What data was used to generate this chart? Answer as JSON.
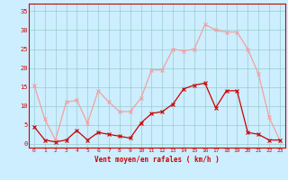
{
  "hours": [
    0,
    1,
    2,
    3,
    4,
    5,
    6,
    7,
    8,
    9,
    10,
    11,
    12,
    13,
    14,
    15,
    16,
    17,
    18,
    19,
    20,
    21,
    22,
    23
  ],
  "rafales": [
    15.5,
    6.5,
    1.0,
    11.0,
    11.5,
    5.5,
    14.0,
    11.0,
    8.5,
    8.5,
    12.0,
    19.5,
    19.5,
    25.0,
    24.5,
    25.0,
    31.5,
    30.0,
    29.5,
    29.5,
    25.0,
    18.5,
    7.0,
    1.0
  ],
  "moyen": [
    4.5,
    1.0,
    0.5,
    1.0,
    3.5,
    1.0,
    3.0,
    2.5,
    2.0,
    1.5,
    5.5,
    8.0,
    8.5,
    10.5,
    14.5,
    15.5,
    16.0,
    9.5,
    14.0,
    14.0,
    3.0,
    2.5,
    1.0,
    1.0
  ],
  "color_rafales": "#f4a0a0",
  "color_moyen": "#cc0000",
  "bg_color": "#cceeff",
  "grid_color": "#99cccc",
  "axis_label": "Vent moyen/en rafales ( km/h )",
  "yticks": [
    0,
    5,
    10,
    15,
    20,
    25,
    30,
    35
  ],
  "ylim": [
    -1,
    37
  ],
  "xlim": [
    -0.5,
    23.5
  ]
}
